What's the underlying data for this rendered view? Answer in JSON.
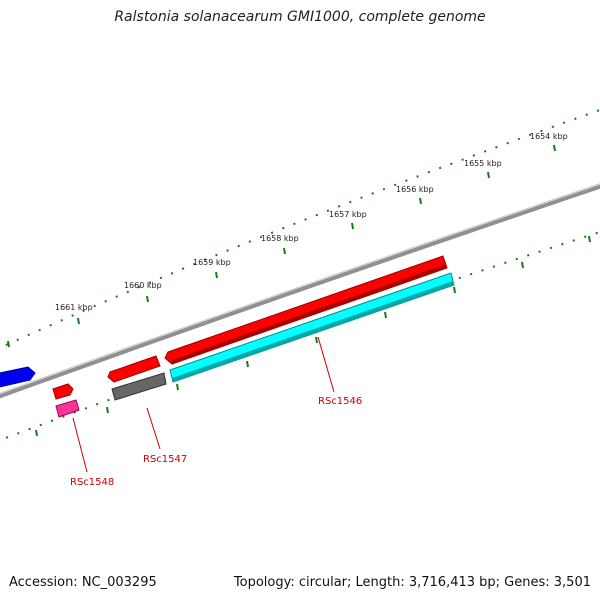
{
  "map": {
    "title": "Ralstonia solanacearum GMI1000, complete genome",
    "accession_label": "Accession: NC_003295",
    "summary_label": "Topology: circular; Length: 3,716,413 bp; Genes: 3,501"
  },
  "scale_ticks": [
    {
      "label": "1654 kbp"
    },
    {
      "label": "1655 kbp"
    },
    {
      "label": "1656 kbp"
    },
    {
      "label": "1657 kbp"
    },
    {
      "label": "1658 kbp"
    },
    {
      "label": "1659 kbp"
    },
    {
      "label": "1660 kbp"
    },
    {
      "label": "1661 kbp"
    }
  ],
  "gene_labels": [
    {
      "label": "RSc1546"
    },
    {
      "label": "RSc1547"
    },
    {
      "label": "RSc1548"
    }
  ],
  "colors": {
    "forward_cds": "#ff0000",
    "reverse_cds": "#00ffff",
    "neighbor_cds": "#0000ff",
    "pseudo_feature": "#ff3399",
    "misc_feature": "#666666",
    "backbone": "#808080",
    "tick": "#1a7a1a",
    "label_line": "#cc0000"
  }
}
